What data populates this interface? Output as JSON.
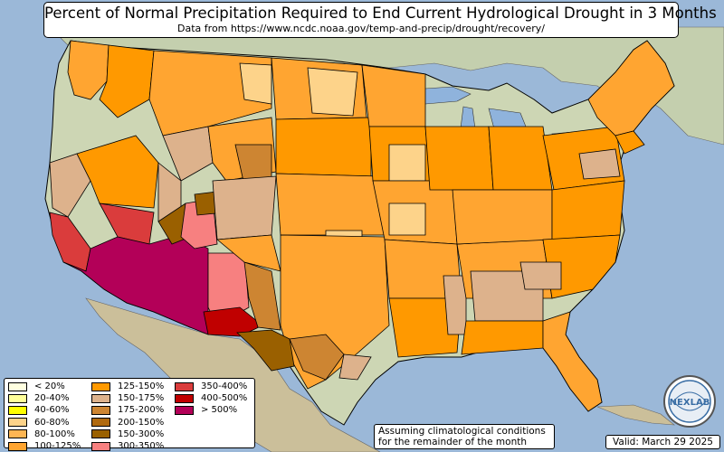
{
  "title": "Percent of Normal Precipitation Required to End Current Hydrological Drought in 3 Months",
  "subtitle": "Data from https://www.ncdc.noaa.gov/temp-and-precip/drought/recovery/",
  "note_line1": "Assuming climatological conditions",
  "note_line2": "for the remainder of the month",
  "valid": "Valid: March 29 2025",
  "logo_text": "NEXLAB",
  "colors": {
    "ocean": "#9bb8d8",
    "land": "#c9d3b0",
    "lake": "#8fb3dc"
  },
  "legend": [
    {
      "label": "< 20%",
      "color": "#ffffe0"
    },
    {
      "label": "20-40%",
      "color": "#ffff99"
    },
    {
      "label": "40-60%",
      "color": "#ffff00"
    },
    {
      "label": "60-80%",
      "color": "#fdd38a"
    },
    {
      "label": "80-100%",
      "color": "#fdb553"
    },
    {
      "label": "100-125%",
      "color": "#ffa531"
    },
    {
      "label": "125-150%",
      "color": "#ff9900"
    },
    {
      "label": "150-175%",
      "color": "#ddb28c"
    },
    {
      "label": "175-200%",
      "color": "#cd8532"
    },
    {
      "label": "200-150%",
      "color": "#b06a10"
    },
    {
      "label": "150-300%",
      "color": "#9a6000"
    },
    {
      "label": "300-350%",
      "color": "#f78080"
    },
    {
      "label": "350-400%",
      "color": "#da3c3c"
    },
    {
      "label": "400-500%",
      "color": "#c00000"
    },
    {
      "label": "> 500%",
      "color": "#b30058"
    }
  ]
}
